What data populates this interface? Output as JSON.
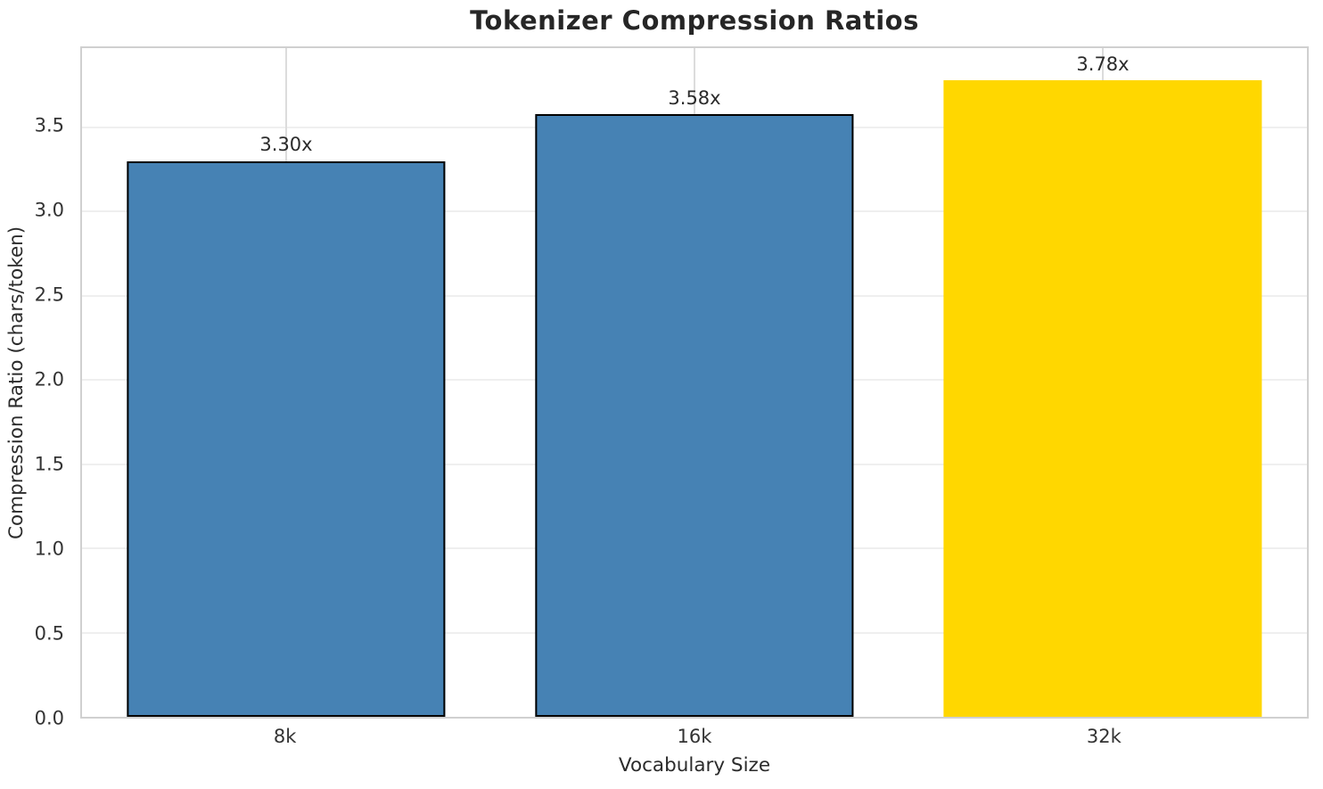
{
  "chart_data": {
    "type": "bar",
    "title": "Tokenizer Compression Ratios",
    "xlabel": "Vocabulary Size",
    "ylabel": "Compression Ratio (chars/token)",
    "categories": [
      "8k",
      "16k",
      "32k"
    ],
    "values": [
      3.3,
      3.58,
      3.78
    ],
    "bar_labels": [
      "3.30x",
      "3.58x",
      "3.78x"
    ],
    "bar_colors": [
      "#4682B4",
      "#4682B4",
      "#FFD700"
    ],
    "bar_edge_colors": [
      "#000000",
      "#000000",
      "none"
    ],
    "ylim": [
      0,
      3.97
    ],
    "yticks": [
      "0.0",
      "0.5",
      "1.0",
      "1.5",
      "2.0",
      "2.5",
      "3.0",
      "3.5"
    ],
    "grid": true,
    "legend": "none"
  },
  "colors": {
    "background": "#FFFFFF",
    "spine": "#D0D0D0",
    "gridline_horizontal": "#EFEFEF",
    "gridline_vertical": "#DCDCDC",
    "text": "#333333",
    "title": "#262626",
    "bar_blue": "#4682B4",
    "bar_gold": "#FFD700",
    "bar_edge": "#000000"
  }
}
